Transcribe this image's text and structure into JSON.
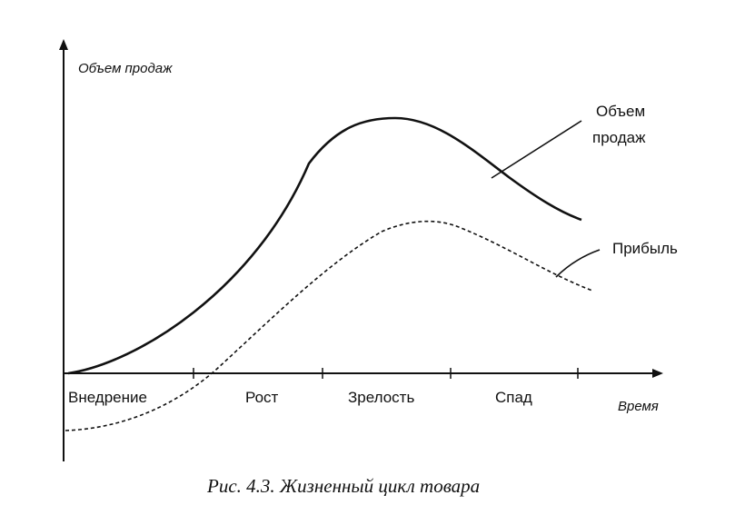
{
  "figure": {
    "y_axis_label": "Объем продаж",
    "x_axis_label": "Время",
    "stages": [
      "Внедрение",
      "Рост",
      "Зрелость",
      "Спад"
    ],
    "curves": [
      {
        "label_line1": "Объем",
        "label_line2": "продаж",
        "style": "solid"
      },
      {
        "label_line1": "Прибыль",
        "style": "dashed"
      }
    ],
    "caption": "Рис. 4.3. Жизненный цикл товара",
    "colors": {
      "ink": "#111111",
      "background": "#ffffff"
    }
  }
}
